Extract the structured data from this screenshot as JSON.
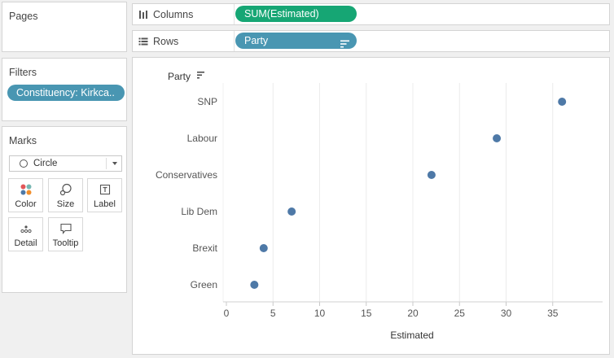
{
  "panels": {
    "pages_title": "Pages",
    "filters_title": "Filters",
    "filter_pill": "Constituency: Kirkca..",
    "marks_title": "Marks",
    "mark_type": "Circle",
    "mark_buttons": {
      "color": "Color",
      "size": "Size",
      "label": "Label",
      "detail": "Detail",
      "tooltip": "Tooltip"
    }
  },
  "shelves": {
    "columns_label": "Columns",
    "columns_pill": "SUM(Estimated)",
    "rows_label": "Rows",
    "rows_pill": "Party"
  },
  "colors": {
    "mark": "#4e79a7",
    "pill_dimension": "#4996b2",
    "pill_measure": "#16a674"
  },
  "chart_data": {
    "type": "scatter",
    "row_header": "Party",
    "categories": [
      "SNP",
      "Labour",
      "Conservatives",
      "Lib Dem",
      "Brexit",
      "Green"
    ],
    "values": [
      36,
      29,
      22,
      7,
      4,
      3
    ],
    "xlabel": "Estimated",
    "xlim": [
      0,
      39
    ],
    "xticks": [
      0,
      5,
      10,
      15,
      20,
      25,
      30,
      35
    ],
    "grid": "vertical"
  }
}
